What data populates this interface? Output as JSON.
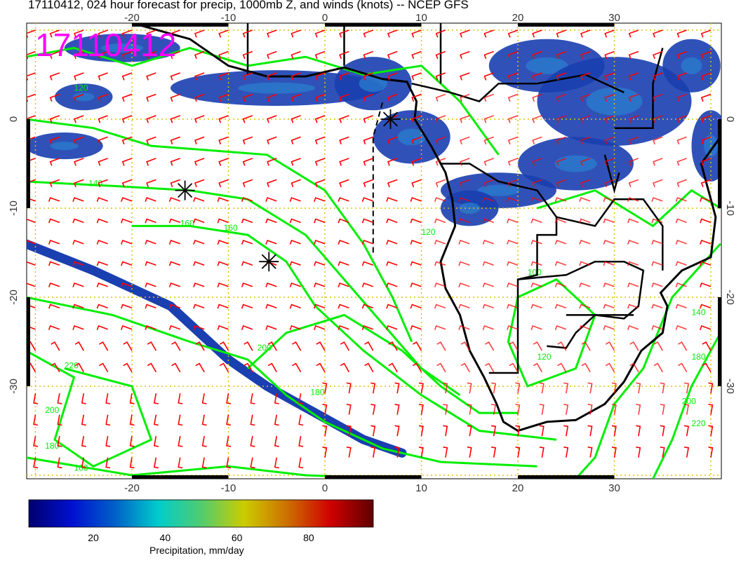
{
  "title": "17110412, 024 hour forecast for precip, 1000mb Z, and winds (knots) -- NCEP GFS",
  "stamp": "17110412",
  "map": {
    "lon_range": [
      -31,
      41
    ],
    "lat_range": [
      -40.4,
      10.8
    ],
    "lon_ticks": [
      "-20",
      "-10",
      "0",
      "10",
      "20",
      "30"
    ],
    "lat_ticks": [
      "0",
      "-10",
      "-20",
      "-30"
    ],
    "contour_labels": [
      "120",
      "140",
      "160",
      "160",
      "180",
      "200",
      "220",
      "200",
      "180",
      "160",
      "100",
      "120",
      "140",
      "180",
      "200",
      "220",
      "120"
    ],
    "markers": [
      {
        "lon": -14.5,
        "lat": -8
      },
      {
        "lon": -5.8,
        "lat": -16
      },
      {
        "lon": 6.8,
        "lat": 0
      }
    ],
    "colors": {
      "wind": "#ff0000",
      "contour": "#00ee00",
      "coast": "#000000",
      "grid": "#e0c000",
      "stamp": "#ff00ff"
    }
  },
  "colorbar": {
    "label": "Precipitation, mm/day",
    "ticks": [
      "20",
      "40",
      "60",
      "80"
    ],
    "range": [
      2,
      98
    ],
    "colors": [
      "#00006e",
      "#0010d0",
      "#0060c8",
      "#00cccc",
      "#50cc70",
      "#cccc00",
      "#cc7000",
      "#d00000",
      "#600000"
    ]
  }
}
